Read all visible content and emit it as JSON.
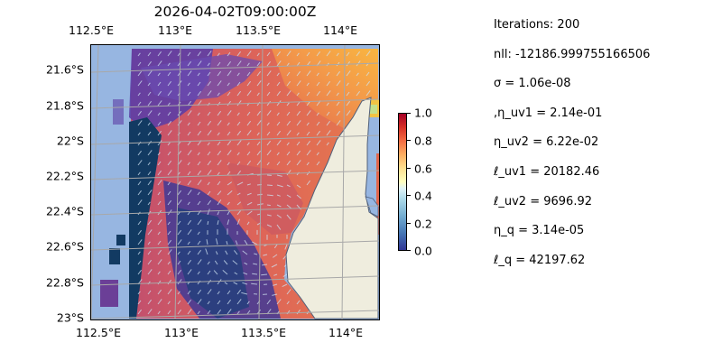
{
  "title": "2026-04-02T09:00:00Z",
  "map": {
    "lon_range": [
      112.5,
      114.2
    ],
    "lat_range": [
      -23.0,
      -21.4
    ],
    "top_ticks": [
      "112.5°E",
      "113°E",
      "113.5°E",
      "114°E"
    ],
    "bottom_ticks": [
      "112.5°E",
      "113°E",
      "113.5°E",
      "114°E"
    ],
    "left_ticks": [
      "21.6°S",
      "21.8°S",
      "22°S",
      "22.2°S",
      "22.4°S",
      "22.6°S",
      "22.8°S",
      "23°S"
    ],
    "ocean_color": "#97b6e1",
    "land_color": "#efedde",
    "colormap": "RdYlBu_r",
    "gridlines": true
  },
  "colorbar": {
    "min": 0.0,
    "max": 1.0,
    "ticks": [
      "1.0",
      "0.8",
      "0.6",
      "0.4",
      "0.2",
      "0.0"
    ]
  },
  "params": [
    "Iterations: 200",
    "nll: -12186.999755166506",
    "σ = 1.06e-08",
    ",η_uv1 = 2.14e-01",
    "η_uv2 = 6.22e-02",
    "ℓ_uv1 = 20182.46",
    "ℓ_uv2 = 9696.92",
    "η_q = 3.14e-05",
    "ℓ_q = 42197.62"
  ]
}
